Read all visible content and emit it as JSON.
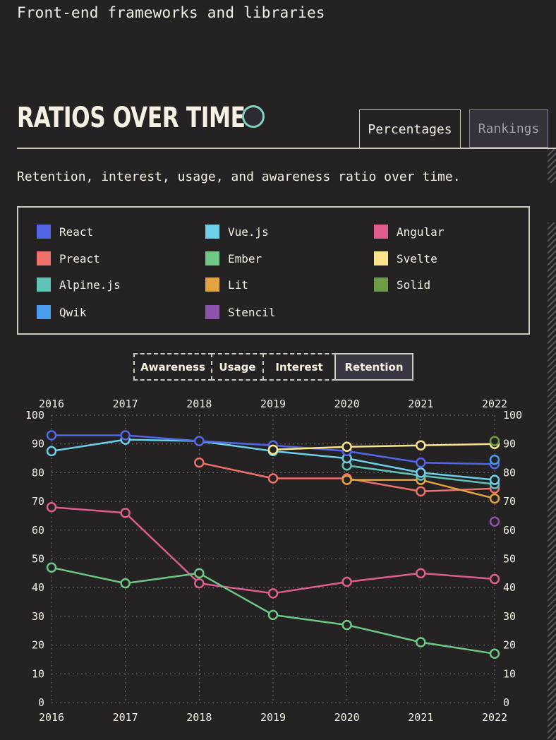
{
  "page": {
    "section_title": "Front-end frameworks and libraries",
    "block_title": "RATIOS OVER TIME",
    "description": "Retention, interest, usage, and awareness ratio over time."
  },
  "tabs": [
    {
      "label": "Percentages",
      "active": true
    },
    {
      "label": "Rankings",
      "active": false
    }
  ],
  "metrics": [
    {
      "label": "Awareness",
      "active": false
    },
    {
      "label": "Usage",
      "active": false
    },
    {
      "label": "Interest",
      "active": false
    },
    {
      "label": "Retention",
      "active": true
    }
  ],
  "legend": [
    {
      "name": "React",
      "color": "#5266e6"
    },
    {
      "name": "Vue.js",
      "color": "#6dcfea"
    },
    {
      "name": "Angular",
      "color": "#de5d8e"
    },
    {
      "name": "Preact",
      "color": "#ee7169"
    },
    {
      "name": "Ember",
      "color": "#6fc785"
    },
    {
      "name": "Svelte",
      "color": "#fae38d"
    },
    {
      "name": "Alpine.js",
      "color": "#5fc3b6"
    },
    {
      "name": "Lit",
      "color": "#e2a343"
    },
    {
      "name": "Solid",
      "color": "#6e9c47"
    },
    {
      "name": "Qwik",
      "color": "#4a9cee"
    },
    {
      "name": "Stencil",
      "color": "#8d53aa"
    }
  ],
  "chart_data": {
    "type": "line",
    "x": [
      2016,
      2017,
      2018,
      2019,
      2020,
      2021,
      2022
    ],
    "ylim": [
      0,
      100
    ],
    "yticks": [
      0,
      10,
      20,
      30,
      40,
      50,
      60,
      70,
      80,
      90,
      100
    ],
    "grid": true,
    "series": [
      {
        "name": "Angular",
        "color": "#de5d8e",
        "values": [
          68,
          66,
          41.5,
          38,
          42,
          45,
          43
        ]
      },
      {
        "name": "Ember",
        "color": "#6fc785",
        "values": [
          47,
          41.5,
          45,
          30.5,
          27,
          21,
          17
        ]
      },
      {
        "name": "Preact",
        "color": "#ee7169",
        "values": [
          null,
          null,
          83.5,
          78,
          78,
          73.5,
          74.5
        ]
      },
      {
        "name": "Lit",
        "color": "#e2a343",
        "values": [
          null,
          null,
          null,
          null,
          77.5,
          77.5,
          71
        ]
      },
      {
        "name": "Alpine.js",
        "color": "#5fc3b6",
        "values": [
          null,
          null,
          null,
          null,
          82.5,
          79,
          76
        ]
      },
      {
        "name": "Vue.js",
        "color": "#6dcfea",
        "values": [
          87.5,
          91.5,
          91,
          87.5,
          85,
          80,
          77.5
        ]
      },
      {
        "name": "React",
        "color": "#5266e6",
        "values": [
          93,
          93,
          91,
          89.5,
          87.5,
          83.5,
          83
        ]
      },
      {
        "name": "Svelte",
        "color": "#fae38d",
        "values": [
          null,
          null,
          null,
          88,
          89,
          89.5,
          90
        ]
      },
      {
        "name": "Solid",
        "color": "#6e9c47",
        "values": [
          null,
          null,
          null,
          null,
          null,
          null,
          91
        ]
      },
      {
        "name": "Qwik",
        "color": "#4a9cee",
        "values": [
          null,
          null,
          null,
          null,
          null,
          null,
          84.5
        ]
      },
      {
        "name": "Stencil",
        "color": "#8d53aa",
        "values": [
          null,
          null,
          null,
          null,
          null,
          null,
          63
        ]
      }
    ]
  }
}
